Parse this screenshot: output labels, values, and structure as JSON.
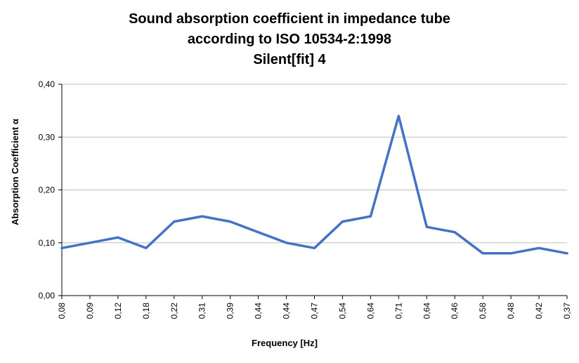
{
  "chart_data": {
    "type": "line",
    "title_lines": [
      "Sound absorption coefficient in impedance tube",
      "according to ISO 10534-2:1998",
      "Silent[fit] 4"
    ],
    "xlabel": "Frequency [Hz]",
    "ylabel": "Absorption Coefficient α",
    "categories": [
      "0,08",
      "0,09",
      "0,12",
      "0,18",
      "0,22",
      "0,31",
      "0,39",
      "0,44",
      "0,44",
      "0,47",
      "0,54",
      "0,64",
      "0,71",
      "0,64",
      "0,46",
      "0,58",
      "0,48",
      "0,42",
      "0,37"
    ],
    "series": [
      {
        "values": [
          0.09,
          0.1,
          0.11,
          0.09,
          0.14,
          0.15,
          0.14,
          0.12,
          0.1,
          0.09,
          0.14,
          0.15,
          0.34,
          0.13,
          0.12,
          0.08,
          0.08,
          0.09,
          0.08
        ],
        "color": "#4472C4"
      }
    ],
    "ylim": [
      0,
      0.4
    ],
    "yticks": [
      "0,00",
      "0,10",
      "0,20",
      "0,30",
      "0,40"
    ],
    "grid": "horizontal",
    "legend": "none"
  }
}
